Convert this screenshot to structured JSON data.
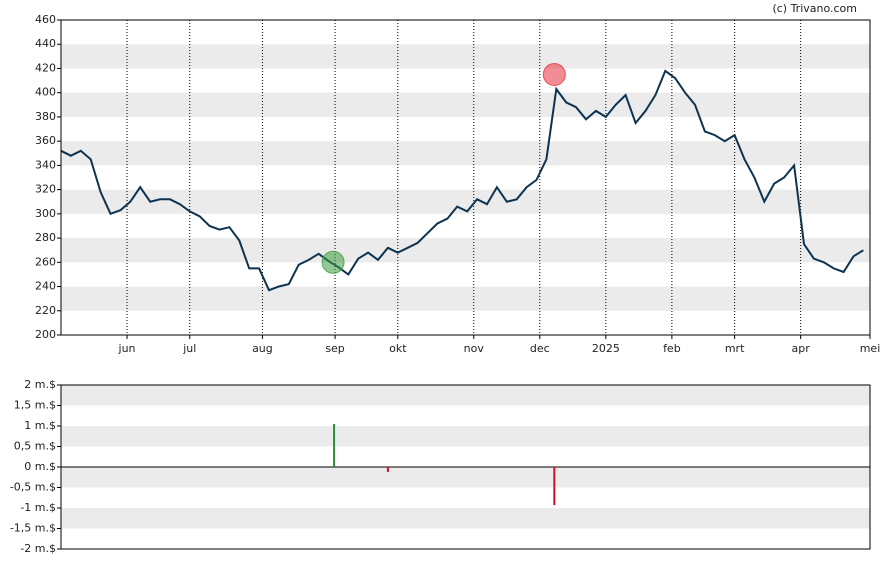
{
  "chart_data": [
    {
      "type": "line",
      "credit": "(c) Trivano.com",
      "x": [
        0,
        3,
        6,
        9,
        12,
        15,
        18,
        21,
        24,
        27,
        30,
        33,
        36,
        39,
        42,
        45,
        48,
        51,
        54,
        57,
        60,
        63,
        66,
        69,
        72,
        75,
        78,
        81,
        84,
        87,
        90,
        93,
        96,
        99,
        102,
        105,
        108,
        111,
        114,
        117,
        120,
        123,
        126,
        129,
        132,
        135,
        138,
        141,
        144,
        147,
        150,
        153,
        156,
        159,
        162,
        165,
        168,
        171,
        174,
        177,
        180,
        183,
        186,
        189,
        192,
        195,
        198,
        201,
        204,
        207,
        210,
        213,
        216,
        219,
        222,
        225,
        228,
        231,
        234,
        237,
        240,
        243
      ],
      "series": [
        {
          "color": "#0d3350",
          "values": [
            352,
            348,
            352,
            345,
            318,
            300,
            303,
            310,
            322,
            310,
            312,
            312,
            308,
            302,
            298,
            290,
            287,
            289,
            278,
            255,
            255,
            237,
            240,
            242,
            258,
            262,
            267,
            261,
            256,
            250,
            263,
            268,
            262,
            272,
            268,
            272,
            276,
            284,
            292,
            296,
            306,
            302,
            312,
            308,
            322,
            310,
            312,
            322,
            328,
            345,
            403,
            392,
            388,
            378,
            385,
            380,
            390,
            398,
            375,
            385,
            398,
            418,
            412,
            400,
            390,
            368,
            365,
            360,
            365,
            345,
            330,
            310,
            325,
            330,
            340,
            275,
            263,
            260,
            255,
            252,
            265,
            270
          ]
        }
      ],
      "markers": [
        {
          "x": 149.4,
          "y": 415,
          "color": "#e8303f"
        },
        {
          "x": 82.4,
          "y": 260,
          "color": "#3d9a40"
        }
      ],
      "xlim": [
        0,
        245
      ],
      "xticks": [
        {
          "value": 20,
          "label": "jun"
        },
        {
          "value": 39,
          "label": "jul"
        },
        {
          "value": 61,
          "label": "aug"
        },
        {
          "value": 83,
          "label": "sep"
        },
        {
          "value": 102,
          "label": "okt"
        },
        {
          "value": 125,
          "label": "nov"
        },
        {
          "value": 145,
          "label": "dec"
        },
        {
          "value": 165,
          "label": "2025"
        },
        {
          "value": 185,
          "label": "feb"
        },
        {
          "value": 204,
          "label": "mrt"
        },
        {
          "value": 224,
          "label": "apr"
        },
        {
          "value": 245,
          "label": "mei"
        }
      ],
      "ylim": [
        200,
        460
      ],
      "yticks": [
        200,
        220,
        240,
        260,
        280,
        300,
        320,
        340,
        360,
        380,
        400,
        420,
        440,
        460
      ],
      "grid": true
    },
    {
      "type": "bar",
      "x": [
        82.7,
        99,
        149.4
      ],
      "values": [
        1.05,
        -0.12,
        -0.93
      ],
      "colors": [
        "#2e8b3a",
        "#d0102a",
        "#d0102a"
      ],
      "xlim": [
        0,
        245
      ],
      "ylim": [
        -2,
        2
      ],
      "yticks": [
        {
          "value": -2,
          "label": "-2 m.$"
        },
        {
          "value": -1.5,
          "label": "-1,5 m.$"
        },
        {
          "value": -1,
          "label": "-1 m.$"
        },
        {
          "value": -0.5,
          "label": "-0,5 m.$"
        },
        {
          "value": 0,
          "label": "0 m.$"
        },
        {
          "value": 0.5,
          "label": "0,5 m.$"
        },
        {
          "value": 1,
          "label": "1 m.$"
        },
        {
          "value": 1.5,
          "label": "1,5 m.$"
        },
        {
          "value": 2,
          "label": "2 m.$"
        }
      ],
      "grid": true
    }
  ]
}
